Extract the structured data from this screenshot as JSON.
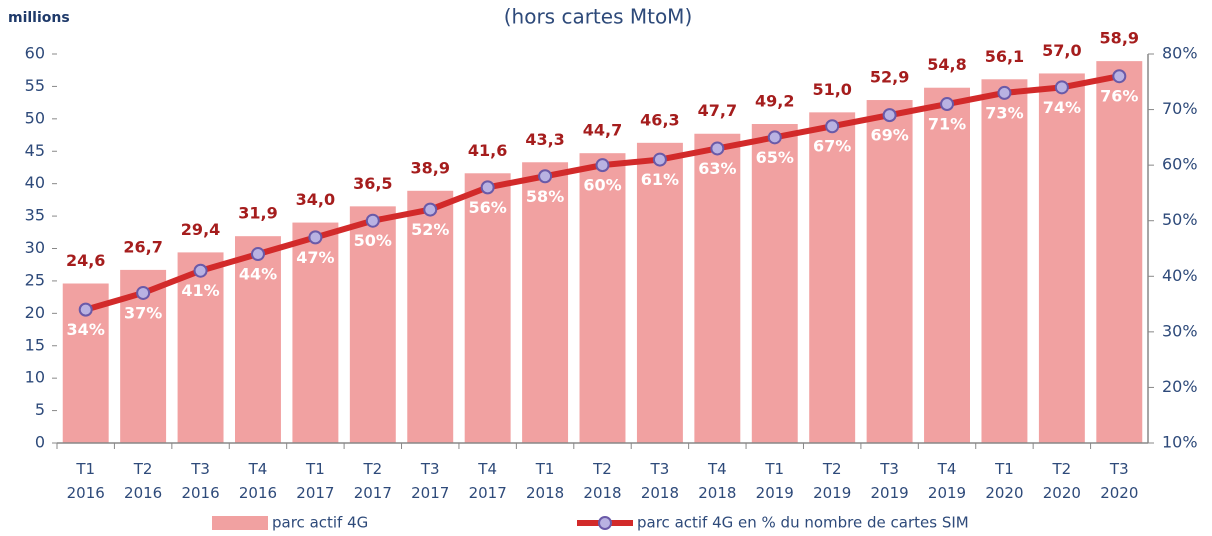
{
  "chart_data": {
    "type": "bar-line",
    "title": "(hors cartes MtoM)",
    "y_label": "millions",
    "categories": [
      "T1 2016",
      "T2 2016",
      "T3 2016",
      "T4 2016",
      "T1 2017",
      "T2 2017",
      "T3 2017",
      "T4 2017",
      "T1 2018",
      "T2 2018",
      "T3 2018",
      "T4 2018",
      "T1 2019",
      "T2 2019",
      "T3 2019",
      "T4 2019",
      "T1 2020",
      "T2 2020",
      "T3 2020"
    ],
    "series": [
      {
        "name": "parc actif 4G",
        "type": "bar",
        "color": "#f1a1a1",
        "values": [
          24.6,
          26.7,
          29.4,
          31.9,
          34.0,
          36.5,
          38.9,
          41.6,
          43.3,
          44.7,
          46.3,
          47.7,
          49.2,
          51.0,
          52.9,
          54.8,
          56.1,
          57.0,
          58.9
        ],
        "value_labels": [
          "24,6",
          "26,7",
          "29,4",
          "31,9",
          "34,0",
          "36,5",
          "38,9",
          "41,6",
          "43,3",
          "44,7",
          "46,3",
          "47,7",
          "49,2",
          "51,0",
          "52,9",
          "54,8",
          "56,1",
          "57,0",
          "58,9"
        ]
      },
      {
        "name": "parc actif 4G en % du nombre de cartes SIM",
        "type": "line",
        "axis": "y2",
        "color": "#d22a2a",
        "marker_color": "#b9b2e2",
        "values": [
          34,
          37,
          41,
          44,
          47,
          50,
          52,
          56,
          58,
          60,
          61,
          63,
          65,
          67,
          69,
          71,
          73,
          74,
          76
        ],
        "value_labels": [
          "34%",
          "37%",
          "41%",
          "44%",
          "47%",
          "50%",
          "52%",
          "56%",
          "58%",
          "60%",
          "61%",
          "63%",
          "65%",
          "67%",
          "69%",
          "71%",
          "73%",
          "74%",
          "76%"
        ]
      }
    ],
    "ylim": [
      0,
      60
    ],
    "yticks": [
      0,
      5,
      10,
      15,
      20,
      25,
      30,
      35,
      40,
      45,
      50,
      55,
      60
    ],
    "y2lim": [
      10,
      80
    ],
    "y2ticks": [
      {
        "value": 10,
        "label": "10%"
      },
      {
        "value": 20,
        "label": "20%"
      },
      {
        "value": 30,
        "label": "30%"
      },
      {
        "value": 40,
        "label": "40%"
      },
      {
        "value": 50,
        "label": "50%"
      },
      {
        "value": 60,
        "label": "60%"
      },
      {
        "value": 70,
        "label": "70%"
      },
      {
        "value": 80,
        "label": "80%"
      }
    ],
    "legend": "bottom"
  }
}
